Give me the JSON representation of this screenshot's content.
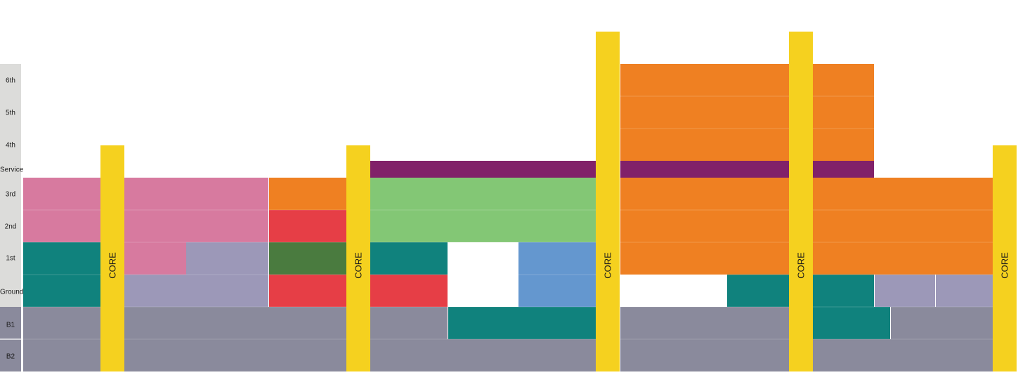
{
  "floors": [
    "6th",
    "5th",
    "4th",
    "Service",
    "3rd",
    "2nd",
    "1st",
    "Ground",
    "B1",
    "B2"
  ],
  "core_label": "CORE",
  "core_count": 5,
  "colors": {
    "label_column": "#dcdcda",
    "basement_label": "#8a8a9c",
    "core": "#f5d11f",
    "orange": "#ef8022",
    "purple": "#812169",
    "pink": "#d77a9f",
    "teal": "#10827d",
    "lavender": "#9c98b8",
    "red": "#e63e46",
    "dark_green": "#4a7b3f",
    "light_green": "#83c775",
    "blue": "#6497cf",
    "grey": "#8a8a9c",
    "white": "#ffffff"
  }
}
